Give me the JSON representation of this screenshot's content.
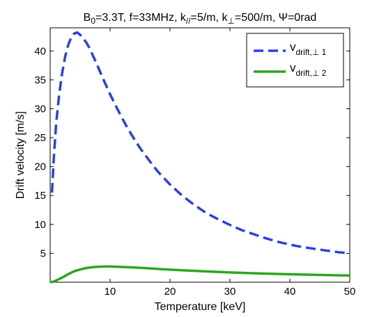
{
  "chart_data": {
    "type": "line",
    "title": {
      "prefix": "B",
      "prefix_sub": "0",
      "part1": "=3.3T, f=33MHz, k",
      "sub1": "//",
      "part2": "=5/m, k",
      "sub2": "⊥",
      "part3": "=500/m, Ψ=0rad"
    },
    "xlabel": "Temperature [keV]",
    "ylabel": "Drift velocity [m/s]",
    "xlim": [
      0,
      50
    ],
    "ylim": [
      0,
      44
    ],
    "xticks": [
      10,
      20,
      30,
      40,
      50
    ],
    "yticks": [
      5,
      10,
      15,
      20,
      25,
      30,
      35,
      40
    ],
    "grid": false,
    "legend_position": "top-right",
    "series": [
      {
        "name_main": "v",
        "name_sub": "drift,⊥ 1",
        "color": "#2b3fe6",
        "style": "dashed",
        "x": [
          0.3,
          0.6,
          1.0,
          1.5,
          2.0,
          2.5,
          3.0,
          3.5,
          4.0,
          4.5,
          5.0,
          5.5,
          6.0,
          6.5,
          7.0,
          8.0,
          9.0,
          10.0,
          11.0,
          12.0,
          13.0,
          14.0,
          15.0,
          16.0,
          17.0,
          18.0,
          20.0,
          22.0,
          24.0,
          26.0,
          28.0,
          30.0,
          32.0,
          34.0,
          36.0,
          38.0,
          40.0,
          42.0,
          44.0,
          46.0,
          48.0,
          50.0
        ],
        "y": [
          15.5,
          21.5,
          27.5,
          32.5,
          36.2,
          39.0,
          41.0,
          42.3,
          43.0,
          43.2,
          42.8,
          42.2,
          41.5,
          40.6,
          39.5,
          37.2,
          34.8,
          32.5,
          30.4,
          28.4,
          26.5,
          24.8,
          23.2,
          21.8,
          20.4,
          19.1,
          16.9,
          15.0,
          13.4,
          12.0,
          10.9,
          9.9,
          9.0,
          8.3,
          7.6,
          7.0,
          6.5,
          6.1,
          5.8,
          5.5,
          5.2,
          5.0
        ]
      },
      {
        "name_main": "v",
        "name_sub": "drift,⊥ 2",
        "color": "#2ca61f",
        "style": "solid",
        "x": [
          0.0,
          0.5,
          1.0,
          2.0,
          3.0,
          4.0,
          5.0,
          6.0,
          7.0,
          8.0,
          9.0,
          10.0,
          12.0,
          14.0,
          16.0,
          18.0,
          20.0,
          25.0,
          30.0,
          35.0,
          40.0,
          45.0,
          50.0
        ],
        "y": [
          0.0,
          0.1,
          0.3,
          0.8,
          1.4,
          1.9,
          2.2,
          2.45,
          2.6,
          2.68,
          2.72,
          2.72,
          2.65,
          2.55,
          2.43,
          2.3,
          2.18,
          1.92,
          1.7,
          1.52,
          1.38,
          1.26,
          1.15
        ]
      }
    ]
  }
}
